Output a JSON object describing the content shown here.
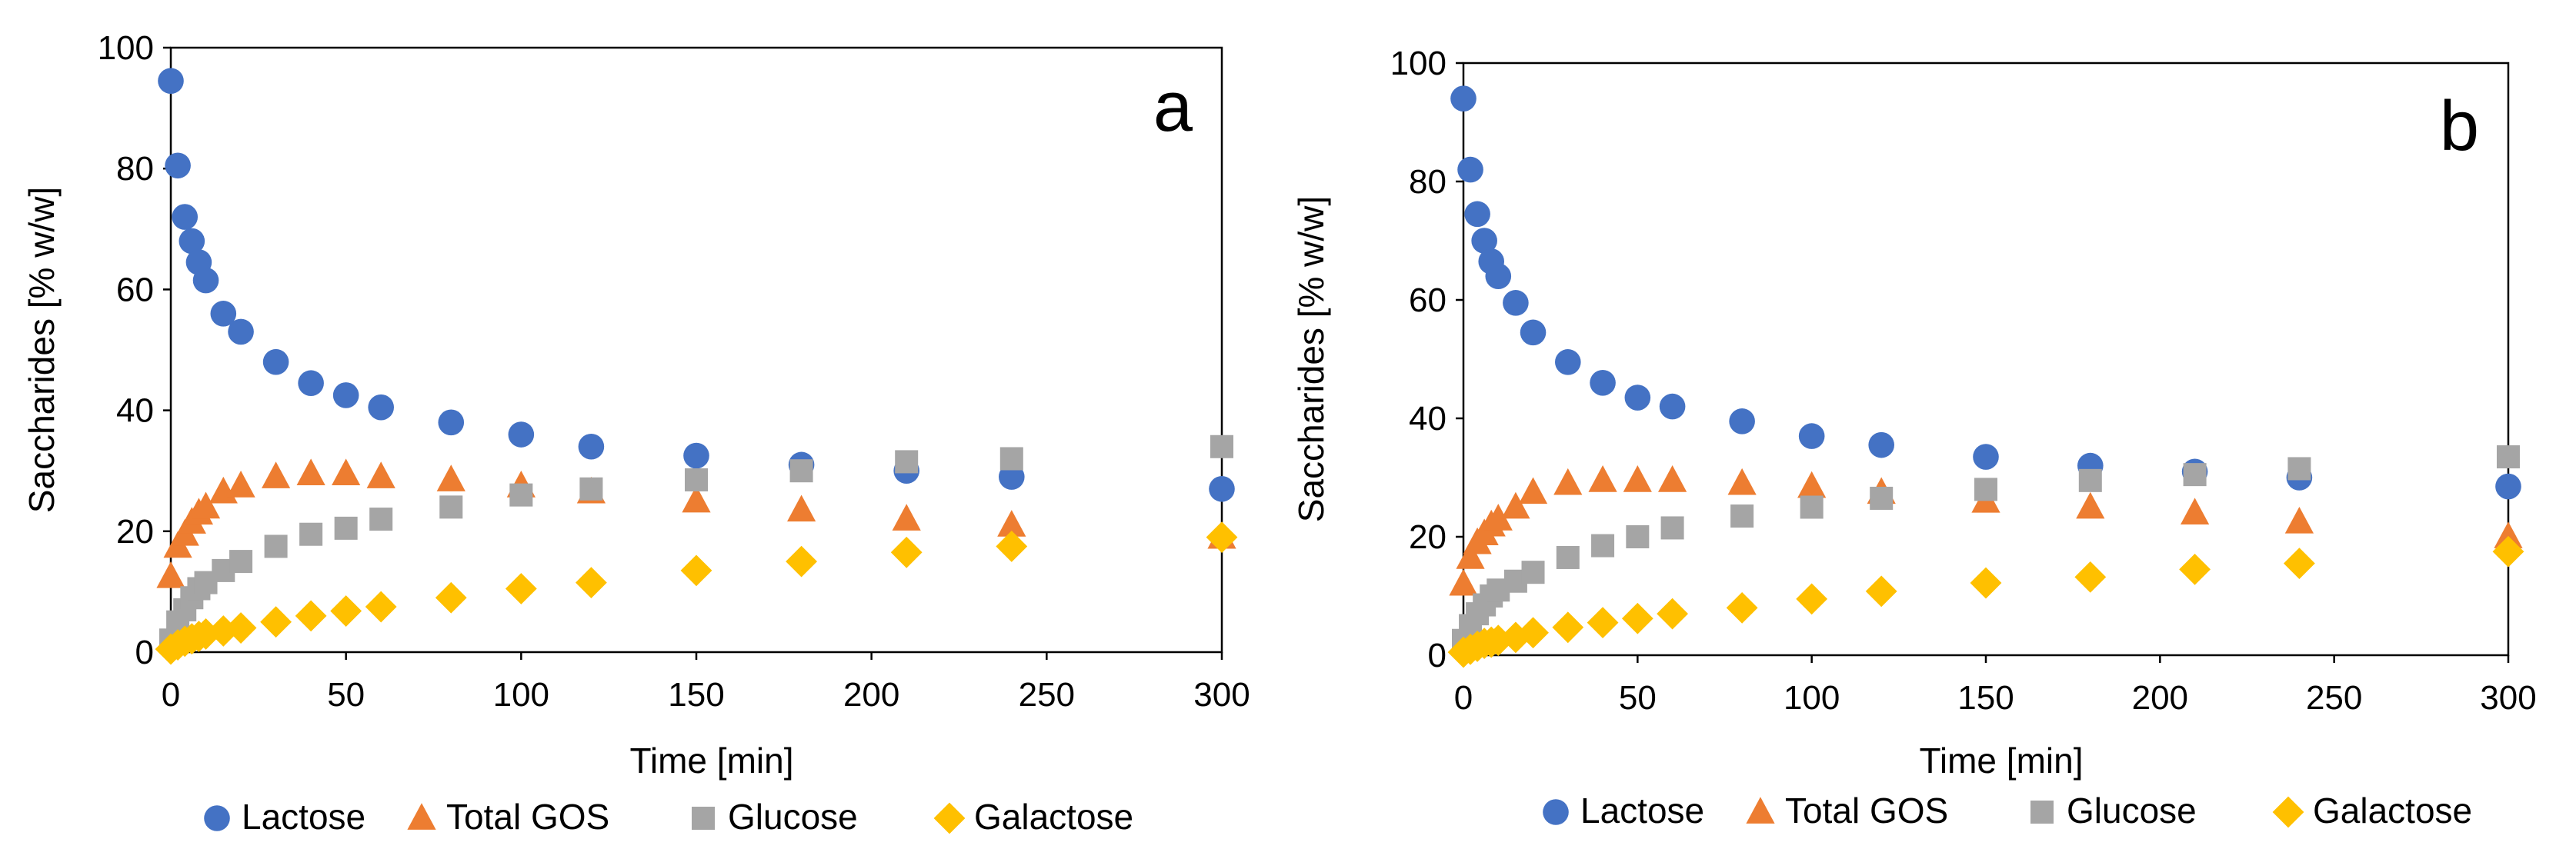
{
  "chart_data": [
    {
      "type": "scatter",
      "panel_label": "a",
      "xlabel": "Time [min]",
      "ylabel": "Saccharides [% w/w]",
      "xlim": [
        0,
        300
      ],
      "ylim": [
        0,
        100
      ],
      "xticks": [
        0,
        50,
        100,
        150,
        200,
        250,
        300
      ],
      "yticks": [
        0,
        20,
        40,
        60,
        80,
        100
      ],
      "grid": false,
      "legend": "bottom",
      "series": [
        {
          "name": "Lactose",
          "marker": "circle",
          "color": "#4472C4",
          "x": [
            0,
            2,
            4,
            6,
            8,
            10,
            15,
            20,
            30,
            40,
            50,
            60,
            80,
            100,
            120,
            150,
            180,
            210,
            240,
            300
          ],
          "y": [
            94.5,
            80.5,
            72,
            68,
            64.5,
            61.5,
            56,
            53,
            48,
            44.5,
            42.5,
            40.5,
            38,
            36,
            34,
            32.5,
            31,
            30,
            29,
            27
          ]
        },
        {
          "name": "Total GOS",
          "marker": "triangle",
          "color": "#ED7D31",
          "x": [
            0,
            2,
            4,
            6,
            8,
            10,
            15,
            20,
            30,
            40,
            50,
            60,
            80,
            100,
            120,
            150,
            180,
            210,
            240,
            300
          ],
          "y": [
            12.5,
            17.5,
            19.5,
            21.5,
            23,
            24,
            26.5,
            27.5,
            29,
            29.5,
            29.5,
            29,
            28.5,
            27.5,
            26.5,
            25,
            23.5,
            22,
            21,
            19
          ]
        },
        {
          "name": "Glucose",
          "marker": "square",
          "color": "#A5A5A5",
          "x": [
            0,
            2,
            4,
            6,
            8,
            10,
            15,
            20,
            30,
            40,
            50,
            60,
            80,
            100,
            120,
            150,
            180,
            210,
            240,
            300
          ],
          "y": [
            2,
            5,
            7,
            9,
            10.5,
            11.5,
            13.5,
            15,
            17.5,
            19.5,
            20.5,
            22,
            24,
            26,
            27,
            28.5,
            30,
            31.5,
            32,
            34
          ]
        },
        {
          "name": "Galactose",
          "marker": "diamond",
          "color": "#FFC000",
          "x": [
            0,
            2,
            4,
            6,
            8,
            10,
            15,
            20,
            30,
            40,
            50,
            60,
            80,
            100,
            120,
            150,
            180,
            210,
            240,
            300
          ],
          "y": [
            0.5,
            1.2,
            1.8,
            2.2,
            2.6,
            3,
            3.5,
            4,
            5,
            6,
            6.8,
            7.5,
            9,
            10.5,
            11.5,
            13.5,
            15,
            16.5,
            17.5,
            19
          ]
        }
      ]
    },
    {
      "type": "scatter",
      "panel_label": "b",
      "xlabel": "Time [min]",
      "ylabel": "Saccharides [% w/w]",
      "xlim": [
        0,
        300
      ],
      "ylim": [
        0,
        100
      ],
      "xticks": [
        0,
        50,
        100,
        150,
        200,
        250,
        300
      ],
      "yticks": [
        0,
        20,
        40,
        60,
        80,
        100
      ],
      "grid": false,
      "legend": "bottom",
      "series": [
        {
          "name": "Lactose",
          "marker": "circle",
          "color": "#4472C4",
          "x": [
            0,
            2,
            4,
            6,
            8,
            10,
            15,
            20,
            30,
            40,
            50,
            60,
            80,
            100,
            120,
            150,
            180,
            210,
            240,
            300
          ],
          "y": [
            94,
            82,
            74.5,
            70,
            66.5,
            64,
            59.5,
            54.5,
            49.5,
            46,
            43.5,
            42,
            39.5,
            37,
            35.5,
            33.5,
            32,
            31,
            30,
            28.5
          ]
        },
        {
          "name": "Total GOS",
          "marker": "triangle",
          "color": "#ED7D31",
          "x": [
            0,
            2,
            4,
            6,
            8,
            10,
            15,
            20,
            30,
            40,
            50,
            60,
            80,
            100,
            120,
            150,
            180,
            210,
            240,
            300
          ],
          "y": [
            12,
            16.5,
            19,
            20.5,
            22,
            23,
            25,
            27.5,
            29,
            29.5,
            29.5,
            29.5,
            29,
            28.5,
            27.5,
            26,
            25,
            24,
            22.5,
            20
          ]
        },
        {
          "name": "Glucose",
          "marker": "square",
          "color": "#A5A5A5",
          "x": [
            0,
            2,
            4,
            6,
            8,
            10,
            15,
            20,
            30,
            40,
            50,
            60,
            80,
            100,
            120,
            150,
            180,
            210,
            240,
            300
          ],
          "y": [
            2.5,
            5,
            7,
            8.5,
            10,
            11,
            12.5,
            14,
            16.5,
            18.5,
            20,
            21.5,
            23.5,
            25,
            26.5,
            28,
            29.5,
            30.5,
            31.5,
            33.5
          ]
        },
        {
          "name": "Galactose",
          "marker": "diamond",
          "color": "#FFC000",
          "x": [
            0,
            2,
            4,
            6,
            8,
            10,
            15,
            20,
            30,
            40,
            50,
            60,
            80,
            100,
            120,
            150,
            180,
            210,
            240,
            300
          ],
          "y": [
            0.5,
            1,
            1.5,
            2,
            2.2,
            2.5,
            3,
            3.8,
            4.7,
            5.5,
            6.2,
            7,
            8,
            9.5,
            10.8,
            12.2,
            13.2,
            14.5,
            15.5,
            17.5
          ]
        }
      ]
    }
  ]
}
